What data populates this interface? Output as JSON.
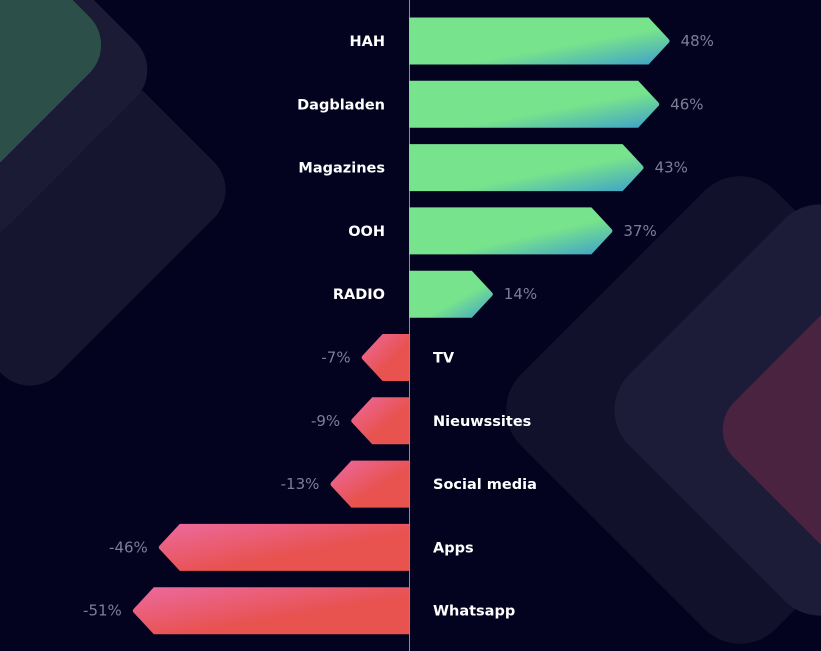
{
  "chart_data": {
    "type": "bar",
    "orientation": "horizontal-diverging",
    "categories": [
      "HAH",
      "Dagbladen",
      "Magazines",
      "OOH",
      "RADIO",
      "TV",
      "Nieuwssites",
      "Social media",
      "Apps",
      "Whatsapp"
    ],
    "values": [
      48,
      46,
      43,
      37,
      14,
      -7,
      -9,
      -13,
      -46,
      -51
    ],
    "value_labels": [
      "48%",
      "46%",
      "43%",
      "37%",
      "14%",
      "-7%",
      "-9%",
      "-13%",
      "-46%",
      "-51%"
    ],
    "grid": false,
    "colors": {
      "background": "#03031f",
      "positive_start": "#77e38c",
      "positive_end": "#3e9fcb",
      "negative_start": "#e8524f",
      "negative_end": "#ec6aa0",
      "axis": "#8a8aa8",
      "value_label": "#7d7d96",
      "category_label": "#ffffff"
    }
  }
}
